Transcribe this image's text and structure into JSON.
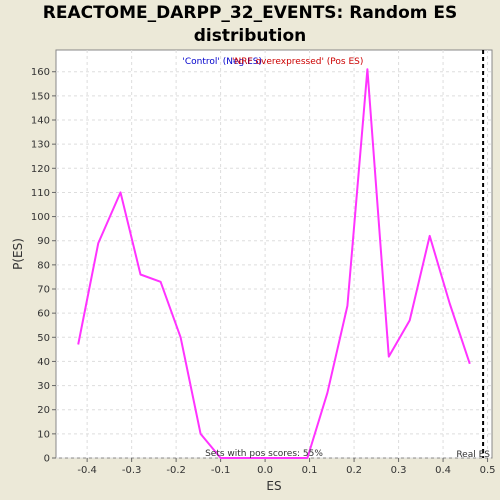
{
  "chart_data": {
    "type": "line",
    "title_line1": "REACTOME_DARPP_32_EVENTS: Random ES",
    "title_line2": "distribution",
    "xlabel": "ES",
    "ylabel": "P(ES)",
    "xlim": [
      -0.47,
      0.51
    ],
    "ylim": [
      0,
      169
    ],
    "x_ticks": [
      -0.4,
      -0.3,
      -0.2,
      -0.1,
      0.0,
      0.1,
      0.2,
      0.3,
      0.4,
      0.5
    ],
    "x_tick_labels": [
      "-0.4",
      "-0.3",
      "-0.2",
      "-0.1",
      "0.0",
      "0.1",
      "0.2",
      "0.3",
      "0.4",
      "0.5"
    ],
    "y_ticks": [
      0,
      10,
      20,
      30,
      40,
      50,
      60,
      70,
      80,
      90,
      100,
      110,
      120,
      130,
      140,
      150,
      160
    ],
    "y_tick_labels": [
      "0",
      "10",
      "20",
      "30",
      "40",
      "50",
      "60",
      "70",
      "80",
      "90",
      "100",
      "110",
      "120",
      "130",
      "140",
      "150",
      "160"
    ],
    "grid": true,
    "series": [
      {
        "color": "#ff33ff",
        "x": [
          -0.42,
          -0.375,
          -0.325,
          -0.28,
          -0.235,
          -0.19,
          -0.145,
          -0.1,
          -0.055,
          -0.01,
          0.035,
          0.095,
          0.14,
          0.185,
          0.23,
          0.278,
          0.325,
          0.37,
          0.415,
          0.46
        ],
        "y": [
          47,
          89,
          110,
          76,
          73,
          50,
          10,
          0,
          0,
          0,
          0,
          0,
          27,
          63,
          161,
          42,
          57,
          92,
          64,
          39
        ]
      }
    ],
    "legend": {
      "neg_label": "'Control' (Neg ES)",
      "neg_color": "#0000cc",
      "pos_label": "'NRF overexpressed' (Pos ES)",
      "pos_color": "#cc0000",
      "placement": "top-center"
    },
    "real_es": {
      "x": 0.49,
      "label": "Real ES"
    },
    "annotation": "Sets with pos scores: 55%"
  }
}
